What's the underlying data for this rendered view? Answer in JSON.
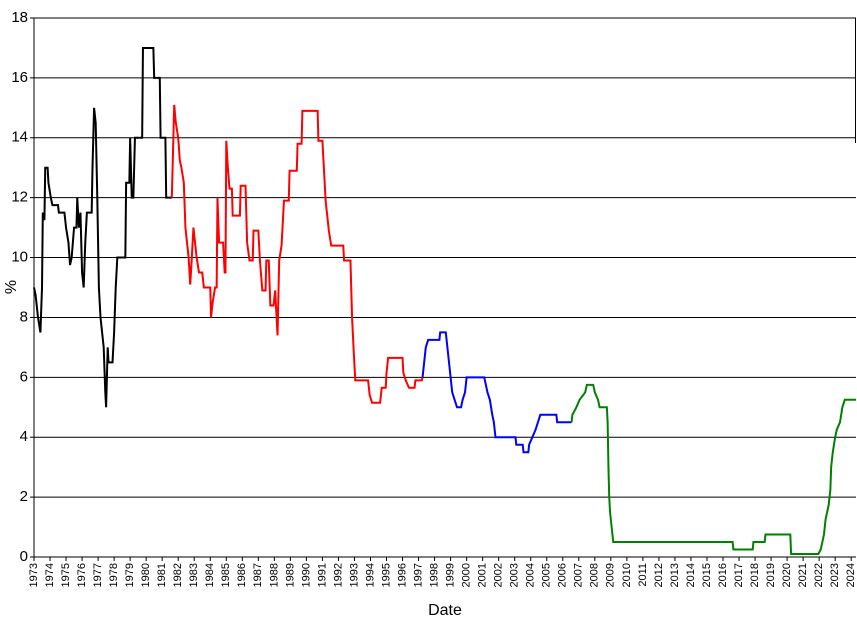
{
  "chart_data": {
    "type": "line",
    "x_label": "Date",
    "y_label": "%",
    "xlim": [
      1973,
      2024.3
    ],
    "ylim": [
      0,
      18
    ],
    "xticks": [
      1973,
      1974,
      1975,
      1976,
      1977,
      1978,
      1979,
      1980,
      1981,
      1982,
      1983,
      1984,
      1985,
      1986,
      1987,
      1988,
      1989,
      1990,
      1991,
      1992,
      1993,
      1994,
      1995,
      1996,
      1997,
      1998,
      1999,
      2000,
      2001,
      2002,
      2003,
      2004,
      2005,
      2006,
      2007,
      2008,
      2009,
      2010,
      2011,
      2012,
      2013,
      2014,
      2015,
      2016,
      2017,
      2018,
      2019,
      2020,
      2021,
      2022,
      2023,
      2024
    ],
    "yticks": [
      0,
      2,
      4,
      6,
      8,
      10,
      12,
      14,
      16,
      18
    ],
    "grid": true,
    "series": [
      {
        "color": "#000000",
        "x": [
          1973.0,
          1973.1,
          1973.25,
          1973.4,
          1973.5,
          1973.55,
          1973.65,
          1973.7,
          1973.85,
          1973.9,
          1974.05,
          1974.15,
          1974.5,
          1974.55,
          1974.9,
          1975.0,
          1975.15,
          1975.25,
          1975.35,
          1975.5,
          1975.65,
          1975.7,
          1975.8,
          1975.9,
          1976.0,
          1976.1,
          1976.2,
          1976.3,
          1976.6,
          1976.65,
          1976.75,
          1976.85,
          1976.95,
          1977.05,
          1977.15,
          1977.35,
          1977.45,
          1977.5,
          1977.6,
          1977.65,
          1977.9,
          1978.0,
          1978.1,
          1978.2,
          1978.7,
          1978.75,
          1978.95,
          1979.0,
          1979.1,
          1979.2,
          1979.3,
          1979.75,
          1979.8,
          1980.45,
          1980.5,
          1980.85,
          1980.9,
          1981.2,
          1981.25,
          1981.6
        ],
        "values": [
          9,
          8.75,
          8,
          7.5,
          9,
          11.5,
          11.25,
          13,
          13,
          12.5,
          12,
          11.75,
          11.75,
          11.5,
          11.5,
          11,
          10.5,
          9.75,
          10,
          11,
          11,
          12,
          11,
          11.5,
          9.5,
          9,
          10.5,
          11.5,
          11.5,
          13,
          15,
          14.5,
          12,
          9,
          8,
          7,
          5.5,
          5,
          7,
          6.5,
          6.5,
          7.5,
          9,
          10,
          10,
          12.5,
          12.5,
          14,
          12,
          12,
          14,
          14,
          17,
          17,
          16,
          16,
          14,
          14,
          12,
          12
        ]
      },
      {
        "color": "#ff0000",
        "x": [
          1981.6,
          1981.65,
          1981.75,
          1981.85,
          1982.0,
          1982.1,
          1982.2,
          1982.35,
          1982.45,
          1982.55,
          1982.65,
          1982.75,
          1982.85,
          1982.95,
          1983.05,
          1983.15,
          1983.3,
          1983.5,
          1983.6,
          1984.0,
          1984.05,
          1984.15,
          1984.3,
          1984.4,
          1984.45,
          1984.55,
          1984.8,
          1984.9,
          1984.95,
          1985.0,
          1985.1,
          1985.2,
          1985.35,
          1985.4,
          1985.85,
          1985.9,
          1986.2,
          1986.3,
          1986.45,
          1986.65,
          1986.7,
          1987.0,
          1987.1,
          1987.25,
          1987.45,
          1987.5,
          1987.65,
          1987.75,
          1987.95,
          1988.05,
          1988.2,
          1988.3,
          1988.45,
          1988.6,
          1988.9,
          1988.95,
          1989.4,
          1989.45,
          1989.7,
          1989.75,
          1990.7,
          1990.75,
          1991.0,
          1991.1,
          1991.2,
          1991.3,
          1991.4,
          1991.55,
          1992.3,
          1992.35,
          1992.75,
          1992.85,
          1992.95,
          1993.05,
          1993.85,
          1993.95,
          1994.1,
          1994.6,
          1994.7,
          1994.95,
          1995.0,
          1995.1,
          1996.0,
          1996.05,
          1996.2,
          1996.4,
          1996.75,
          1996.8,
          1997.2,
          1997.25
        ],
        "values": [
          12,
          13,
          15.1,
          14.5,
          14,
          13.25,
          13,
          12.5,
          11,
          10.5,
          10,
          9.1,
          10,
          11,
          10.5,
          10,
          9.5,
          9.5,
          9,
          9,
          8,
          8.5,
          9,
          9,
          12,
          10.5,
          10.5,
          9.5,
          9.5,
          13.9,
          13,
          12.3,
          12.3,
          11.4,
          11.4,
          12.4,
          12.4,
          10.5,
          9.9,
          9.9,
          10.9,
          10.9,
          9.9,
          8.9,
          8.9,
          9.9,
          9.9,
          8.4,
          8.4,
          8.9,
          7.4,
          9.9,
          10.4,
          11.9,
          11.9,
          12.9,
          12.9,
          13.8,
          13.8,
          14.9,
          14.9,
          13.9,
          13.9,
          12.9,
          11.9,
          11.4,
          10.9,
          10.4,
          10.4,
          9.9,
          9.9,
          8,
          6.9,
          5.9,
          5.9,
          5.4,
          5.15,
          5.15,
          5.65,
          5.65,
          6.15,
          6.65,
          6.65,
          6.15,
          5.9,
          5.65,
          5.65,
          5.9,
          5.9,
          6
        ]
      },
      {
        "color": "#0000ff",
        "x": [
          1997.25,
          1997.35,
          1997.45,
          1997.6,
          1998.3,
          1998.35,
          1998.7,
          1998.8,
          1998.9,
          1999.0,
          1999.1,
          1999.25,
          1999.4,
          1999.65,
          1999.75,
          1999.9,
          2000.0,
          2001.1,
          2001.2,
          2001.3,
          2001.45,
          2001.6,
          2001.7,
          2001.8,
          2003.05,
          2003.1,
          2003.5,
          2003.55,
          2003.85,
          2003.9,
          2004.1,
          2004.3,
          2004.45,
          2004.6,
          2005.6,
          2005.65,
          2006.55
        ],
        "values": [
          6,
          6.5,
          7,
          7.25,
          7.25,
          7.5,
          7.5,
          7,
          6.5,
          6,
          5.5,
          5.25,
          5,
          5,
          5.25,
          5.5,
          6,
          6,
          5.75,
          5.5,
          5.25,
          4.75,
          4.5,
          4,
          4,
          3.75,
          3.75,
          3.5,
          3.5,
          3.75,
          4,
          4.25,
          4.5,
          4.75,
          4.75,
          4.5,
          4.5
        ]
      },
      {
        "color": "#008000",
        "x": [
          2006.55,
          2006.6,
          2006.85,
          2007.05,
          2007.4,
          2007.5,
          2007.9,
          2008.0,
          2008.2,
          2008.3,
          2008.75,
          2008.8,
          2008.85,
          2008.9,
          2008.95,
          2009.05,
          2009.15,
          2016.6,
          2016.65,
          2017.85,
          2017.9,
          2018.6,
          2018.65,
          2020.2,
          2020.25,
          2021.95,
          2022.1,
          2022.2,
          2022.3,
          2022.4,
          2022.6,
          2022.7,
          2022.75,
          2022.85,
          2023.0,
          2023.1,
          2023.3,
          2023.45,
          2023.6,
          2024.3
        ],
        "values": [
          4.5,
          4.75,
          5,
          5.25,
          5.5,
          5.75,
          5.75,
          5.5,
          5.25,
          5,
          5,
          4.5,
          3,
          2,
          1.5,
          1,
          0.5,
          0.5,
          0.25,
          0.25,
          0.5,
          0.5,
          0.75,
          0.75,
          0.1,
          0.1,
          0.25,
          0.5,
          0.75,
          1.25,
          1.75,
          2.25,
          3,
          3.5,
          4,
          4.25,
          4.5,
          5,
          5.25,
          5.25
        ]
      }
    ]
  }
}
